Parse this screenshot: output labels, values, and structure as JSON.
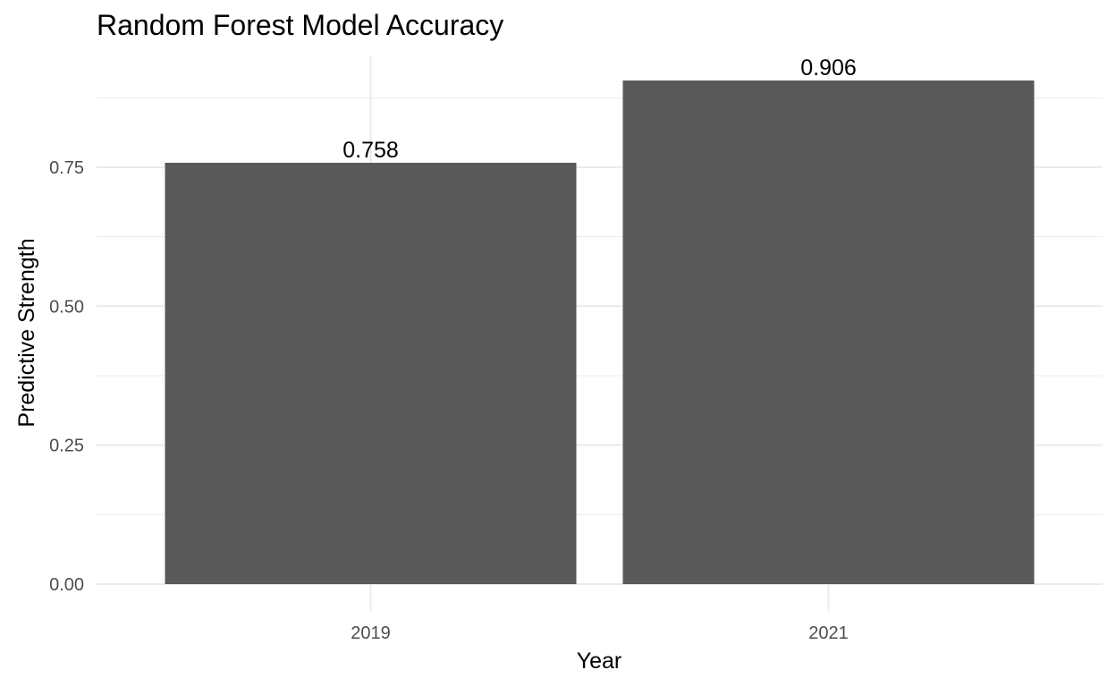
{
  "chart_data": {
    "type": "bar",
    "title": "Random Forest Model Accuracy",
    "xlabel": "Year",
    "ylabel": "Predictive Strength",
    "categories": [
      "2019",
      "2021"
    ],
    "values": [
      0.758,
      0.906
    ],
    "value_labels": [
      "0.758",
      "0.906"
    ],
    "yticks": [
      0,
      0.25,
      0.5,
      0.75
    ],
    "ytick_labels": [
      "0.00",
      "0.25",
      "0.50",
      "0.75"
    ],
    "ylim": [
      0,
      0.906
    ],
    "grid": true,
    "legend": "none",
    "colors": {
      "bar": "#595959",
      "grid": "#ebebeb",
      "tick_text": "#4d4d4d",
      "text": "#000000"
    }
  }
}
